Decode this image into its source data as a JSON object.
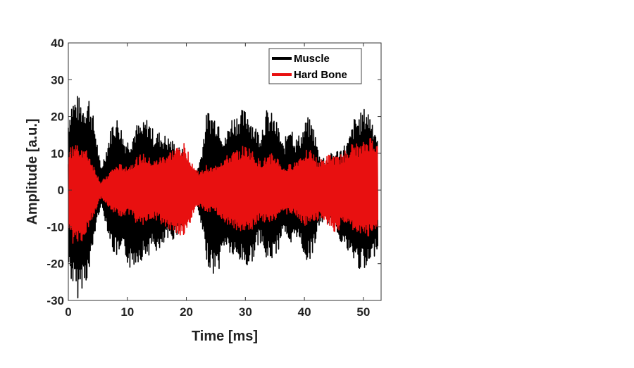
{
  "chart_data": {
    "type": "line",
    "title": "",
    "xlabel": "Time [ms]",
    "ylabel": "Amplitude [a.u.]",
    "xlim": [
      0,
      53
    ],
    "ylim": [
      -30,
      40
    ],
    "xticks": [
      0,
      10,
      20,
      30,
      40,
      50
    ],
    "yticks": [
      -30,
      -20,
      -10,
      0,
      10,
      20,
      30,
      40
    ],
    "grid": false,
    "legend_position": "top-right",
    "series": [
      {
        "name": "Muscle",
        "color": "#000000",
        "envelope": {
          "t": [
            0,
            0.5,
            1.5,
            2.5,
            3.5,
            4.5,
            5.5,
            6.5,
            7.5,
            8.5,
            9.5,
            10.5,
            11.5,
            12.5,
            13.5,
            14.5,
            15.5,
            16.5,
            17.5,
            18.5,
            19.5,
            20.5,
            21.5,
            22.5,
            23.5,
            24.5,
            25.5,
            26.5,
            27.5,
            28.5,
            29.5,
            30.5,
            31.5,
            32.5,
            33.5,
            34.5,
            35.5,
            36.5,
            37.5,
            38.5,
            39.5,
            40.5,
            41.5,
            42.5,
            43.5,
            44.5,
            45.5,
            46.5,
            47.5,
            48.5,
            49.5,
            50.5,
            51.5,
            52.5
          ],
          "max": [
            20,
            25,
            26,
            24,
            26,
            18,
            6,
            12,
            19,
            20,
            14,
            14,
            18,
            18,
            20,
            16,
            16,
            15,
            14,
            12,
            11,
            8,
            4,
            10,
            22,
            21,
            20,
            14,
            20,
            21,
            22,
            22,
            18,
            16,
            22,
            21,
            18,
            12,
            20,
            14,
            16,
            20,
            18,
            10,
            9,
            10,
            11,
            12,
            14,
            20,
            21,
            23,
            20,
            15
          ],
          "min": [
            -22,
            -25,
            -30,
            -26,
            -24,
            -12,
            -4,
            -10,
            -17,
            -19,
            -18,
            -22,
            -20,
            -19,
            -18,
            -16,
            -18,
            -14,
            -14,
            -12,
            -10,
            -8,
            -3,
            -10,
            -20,
            -23,
            -22,
            -15,
            -18,
            -20,
            -20,
            -22,
            -18,
            -14,
            -20,
            -19,
            -17,
            -10,
            -18,
            -12,
            -16,
            -20,
            -17,
            -10,
            -8,
            -10,
            -12,
            -15,
            -18,
            -20,
            -22,
            -23,
            -20,
            -15
          ]
        }
      },
      {
        "name": "Hard Bone",
        "color": "#e81010",
        "envelope": {
          "t": [
            0,
            0.5,
            1.5,
            2.5,
            3.5,
            4.5,
            5.5,
            6.5,
            7.5,
            8.5,
            9.5,
            10.5,
            11.5,
            12.5,
            13.5,
            14.5,
            15.5,
            16.5,
            17.5,
            18.5,
            19.5,
            20.5,
            21.5,
            22.5,
            23.5,
            24.5,
            25.5,
            26.5,
            27.5,
            28.5,
            29.5,
            30.5,
            31.5,
            32.5,
            33.5,
            34.5,
            35.5,
            36.5,
            37.5,
            38.5,
            39.5,
            40.5,
            41.5,
            42.5,
            43.5,
            44.5,
            45.5,
            46.5,
            47.5,
            48.5,
            49.5,
            50.5,
            51.5,
            52.5
          ],
          "max": [
            10,
            12,
            13,
            12,
            10,
            6,
            2,
            4,
            6,
            7,
            7,
            7,
            9,
            10,
            9,
            8,
            9,
            10,
            11,
            12,
            13,
            10,
            6,
            5,
            7,
            6,
            8,
            9,
            10,
            11,
            12,
            12,
            10,
            8,
            9,
            10,
            9,
            6,
            7,
            8,
            10,
            12,
            10,
            8,
            9,
            10,
            9,
            10,
            12,
            13,
            12,
            14,
            15,
            12
          ],
          "min": [
            -12,
            -14,
            -16,
            -14,
            -10,
            -6,
            -2,
            -4,
            -6,
            -7,
            -7,
            -7,
            -9,
            -10,
            -9,
            -8,
            -9,
            -10,
            -11,
            -12,
            -13,
            -10,
            -5,
            -5,
            -6,
            -6,
            -7,
            -9,
            -10,
            -11,
            -12,
            -12,
            -10,
            -8,
            -9,
            -9,
            -8,
            -6,
            -7,
            -7,
            -9,
            -10,
            -9,
            -8,
            -9,
            -10,
            -13,
            -9,
            -10,
            -12,
            -12,
            -13,
            -12,
            -10
          ]
        }
      }
    ]
  }
}
